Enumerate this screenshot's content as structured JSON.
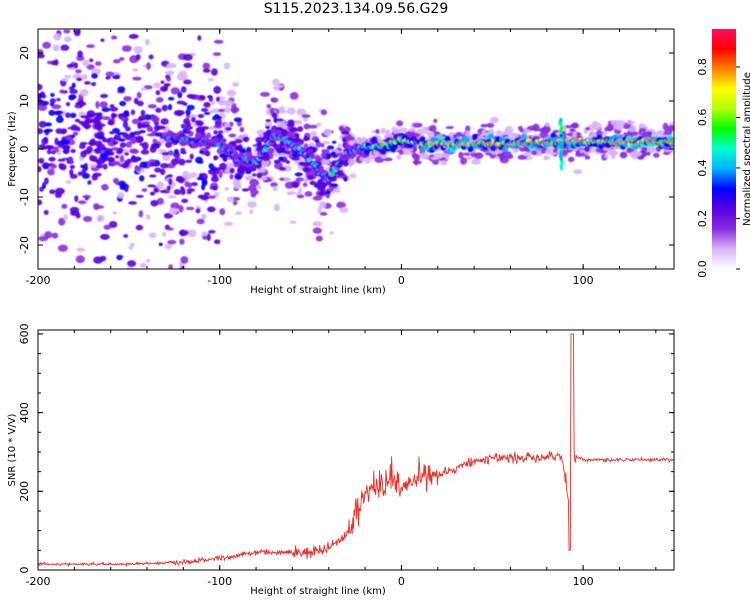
{
  "title": "S115.2023.134.09.56.G29",
  "chart_data": [
    {
      "type": "heatmap",
      "xlabel": "Height of straight line (km)",
      "ylabel": "Frequency (Hz)",
      "xlim": [
        -200,
        150
      ],
      "ylim": [
        -25,
        25
      ],
      "x_ticks": [
        -200,
        -100,
        0,
        100
      ],
      "y_ticks": [
        -20,
        -10,
        0,
        10,
        20
      ],
      "colorbar": {
        "label": "Normalized spectral amplitude",
        "range": [
          0,
          0.95
        ],
        "ticks": [
          0.0,
          0.2,
          0.4,
          0.6,
          0.8
        ],
        "tick_labels": [
          "0.0",
          "0.2",
          "0.4",
          "0.6",
          "0.8"
        ],
        "colormap": [
          "#ffffff",
          "#d8b4f8",
          "#8a2be2",
          "#5a00e0",
          "#0000ff",
          "#00b0ff",
          "#00ffd0",
          "#00ff00",
          "#b0ff00",
          "#ffff00",
          "#ff8000",
          "#ff0000",
          "#ff1060"
        ]
      },
      "ridge": {
        "x": [
          -200,
          -160,
          -120,
          -100,
          -90,
          -80,
          -70,
          -60,
          -50,
          -45,
          -40,
          -35,
          -30,
          -20,
          -10,
          0,
          10,
          50,
          90,
          100,
          150
        ],
        "y": [
          4,
          3,
          2,
          1,
          -2,
          -3,
          3,
          1,
          -2,
          -5,
          -6,
          -3,
          -1,
          0.5,
          0.5,
          2,
          1,
          1,
          1.5,
          1.5,
          1.5
        ]
      }
    },
    {
      "type": "line",
      "xlabel": "Height of straight line (km)",
      "ylabel": "SNR (10 * V/V)",
      "xlim": [
        -200,
        150
      ],
      "ylim": [
        0,
        610
      ],
      "x_ticks": [
        -200,
        -100,
        0,
        100
      ],
      "y_ticks": [
        0,
        200,
        400,
        600
      ],
      "color": "#e8312a",
      "series": [
        {
          "x": [
            -200,
            -150,
            -120,
            -100,
            -80,
            -60,
            -50,
            -40,
            -30,
            -25,
            -20,
            -15,
            -10,
            -5,
            0,
            10,
            20,
            30,
            40,
            50,
            60,
            70,
            80,
            88,
            92,
            93,
            94,
            95,
            100,
            110,
            120,
            130,
            140,
            150
          ],
          "y": [
            15,
            15,
            20,
            30,
            45,
            45,
            45,
            55,
            90,
            150,
            190,
            210,
            210,
            225,
            210,
            240,
            245,
            255,
            275,
            285,
            285,
            285,
            285,
            290,
            180,
            130,
            580,
            290,
            280,
            280,
            280,
            280,
            280,
            280
          ]
        }
      ]
    }
  ]
}
